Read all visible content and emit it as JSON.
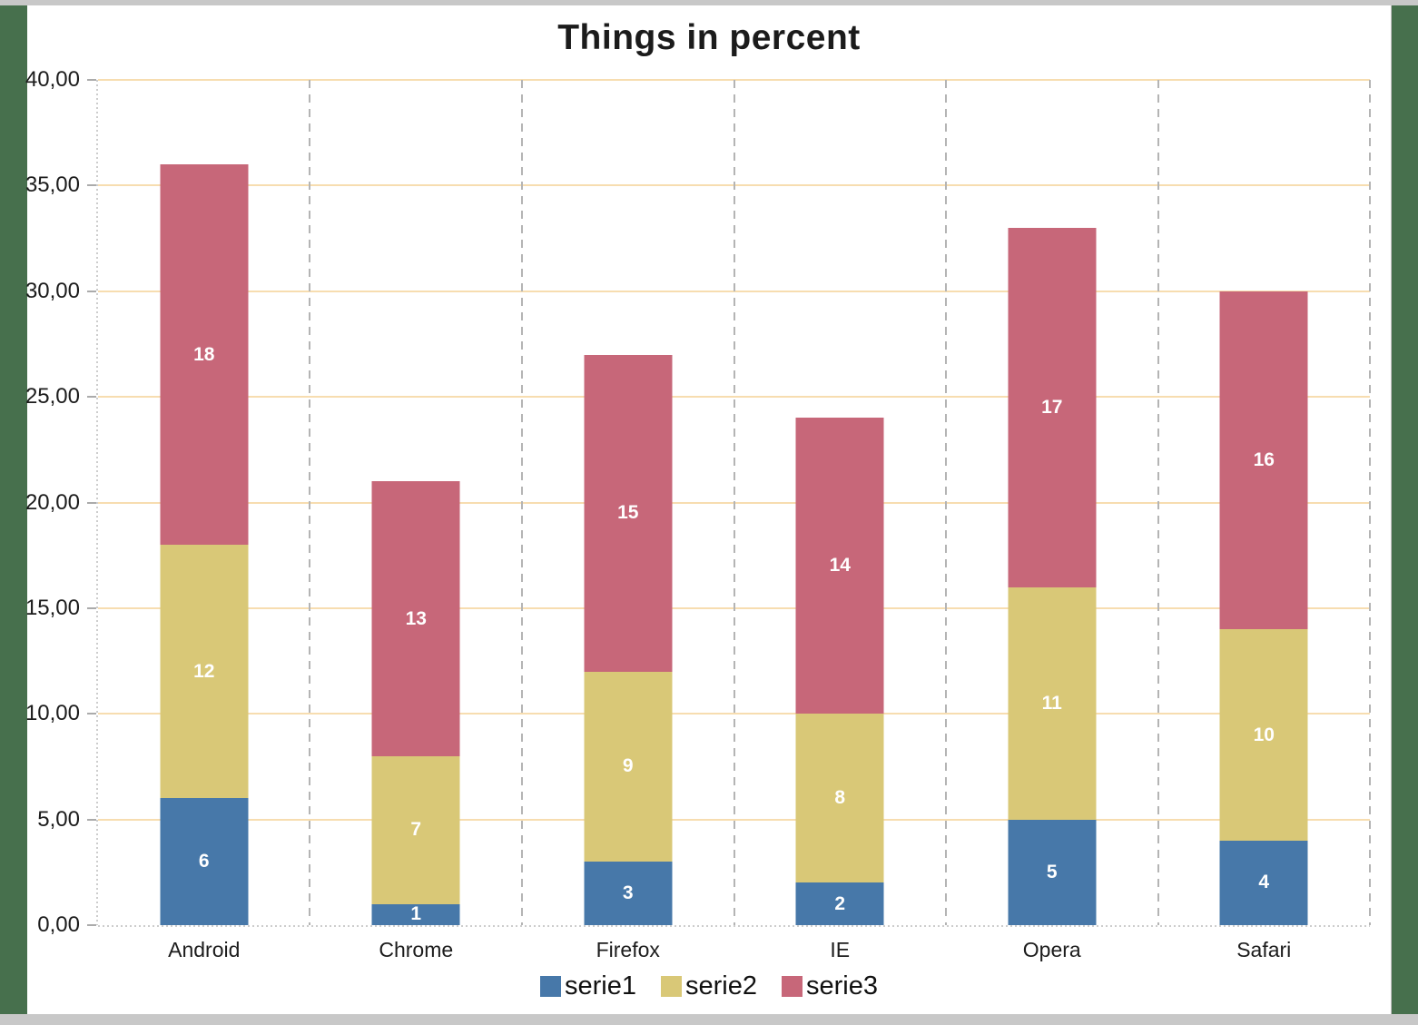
{
  "frame": {
    "border_color": "#47704d",
    "strip_color": "#c8c8c8",
    "canvas_color": "#ffffff"
  },
  "chart_data": {
    "type": "bar",
    "stacked": true,
    "title": "Things in percent",
    "categories": [
      "Android",
      "Chrome",
      "Firefox",
      "IE",
      "Opera",
      "Safari"
    ],
    "series": [
      {
        "name": "serie1",
        "color": "#4778a9",
        "values": [
          6,
          1,
          3,
          2,
          5,
          4
        ]
      },
      {
        "name": "serie2",
        "color": "#d9c877",
        "values": [
          12,
          7,
          9,
          8,
          11,
          10
        ]
      },
      {
        "name": "serie3",
        "color": "#c76779",
        "values": [
          18,
          13,
          15,
          14,
          17,
          16
        ]
      }
    ],
    "totals": [
      36,
      21,
      27,
      24,
      33,
      30
    ],
    "xlabel": "",
    "ylabel": "",
    "ylim": [
      0,
      40
    ],
    "ytick_step": 5,
    "ytick_labels": [
      "0,00",
      "5,00",
      "10,00",
      "15,00",
      "20,00",
      "25,00",
      "30,00",
      "35,00",
      "40,00"
    ],
    "grid": {
      "horizontal": true,
      "horizontal_color": "#f7ddb0",
      "vertical": true,
      "vertical_color": "#b4b4b4",
      "axis_dot_color": "#cdcdcd",
      "tick_color": "#ababab"
    },
    "value_labels": "white-bold-centered",
    "legend_position": "bottom"
  }
}
